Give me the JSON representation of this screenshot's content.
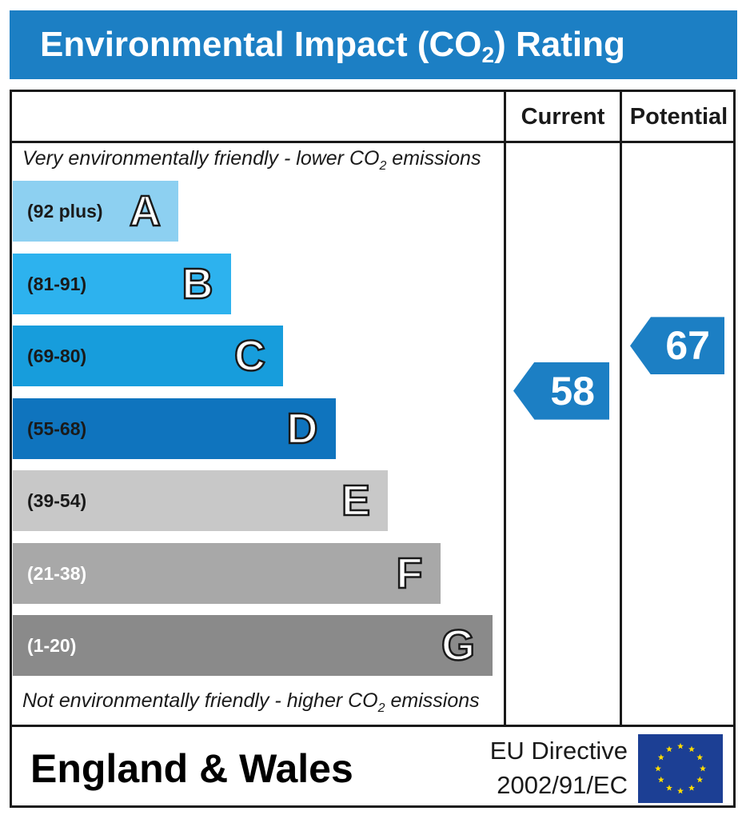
{
  "title": {
    "prefix": "Environmental Impact (CO",
    "sub": "2",
    "suffix": ") Rating"
  },
  "columns": {
    "current": "Current",
    "potential": "Potential"
  },
  "top_note": {
    "prefix": "Very environmentally friendly - lower CO",
    "sub": "2",
    "suffix": " emissions"
  },
  "bottom_note": {
    "prefix": "Not environmentally friendly - higher CO",
    "sub": "2",
    "suffix": " emissions"
  },
  "chart_data": {
    "type": "bar",
    "categories": [
      "A",
      "B",
      "C",
      "D",
      "E",
      "F",
      "G"
    ],
    "ranges": [
      "(92 plus)",
      "(81-91)",
      "(69-80)",
      "(55-68)",
      "(39-54)",
      "(21-38)",
      "(1-20)"
    ],
    "band_colors": [
      "#8dd0f1",
      "#2db2ee",
      "#179ddc",
      "#0f74be",
      "#c8c8c8",
      "#a8a8a8",
      "#8a8a8a"
    ],
    "range_text_colors": [
      "#1a1a1a",
      "#1a1a1a",
      "#1a1a1a",
      "#1a1a1a",
      "#1a1a1a",
      "#ffffff",
      "#ffffff"
    ],
    "current": {
      "value": 58,
      "band": "D"
    },
    "potential": {
      "value": 67,
      "band": "D"
    },
    "indicator_color": "#1c7fc4"
  },
  "footer": {
    "country": "England & Wales",
    "directive_line1": "EU Directive",
    "directive_line2": "2002/91/EC",
    "flag_colors": {
      "field": "#1c3f94",
      "stars": "#ffdd00"
    }
  }
}
